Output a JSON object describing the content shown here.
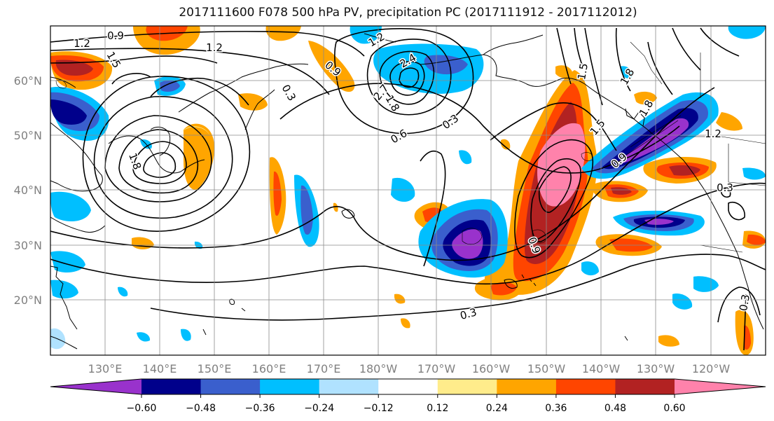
{
  "title": "2017111600 F078 500 hPa PV, precipitation PC (2017111912 - 2017112012)",
  "map": {
    "lat_labels": [
      "60°N",
      "50°N",
      "40°N",
      "30°N",
      "20°N"
    ],
    "lon_labels": [
      "130°E",
      "140°E",
      "150°E",
      "160°E",
      "170°E",
      "180°W",
      "170°W",
      "160°W",
      "150°W",
      "140°W",
      "130°W",
      "120°W"
    ],
    "contour_labels": [
      "0.9",
      "1.2",
      "1.2",
      "1.5",
      "1.8",
      "1.2",
      "0.9",
      "1.5",
      "2.4",
      "2.7",
      "1.8",
      "0.6",
      "0.3",
      "0.3",
      "0.9",
      "1.5",
      "1.8",
      "1.8",
      "1.2",
      "0.9",
      "0.3",
      "0.3",
      "0.3"
    ]
  },
  "colorbar": {
    "ticks": [
      "−0.60",
      "−0.48",
      "−0.36",
      "−0.24",
      "−0.12",
      "0.12",
      "0.24",
      "0.36",
      "0.48",
      "0.60"
    ],
    "colors": [
      "#9932cc",
      "#00008b",
      "#3a5fcd",
      "#00bfff",
      "#b0e2ff",
      "#ffffff",
      "#ffec8b",
      "#ffa500",
      "#ff4500",
      "#b22222",
      "#ff82ab"
    ]
  }
}
